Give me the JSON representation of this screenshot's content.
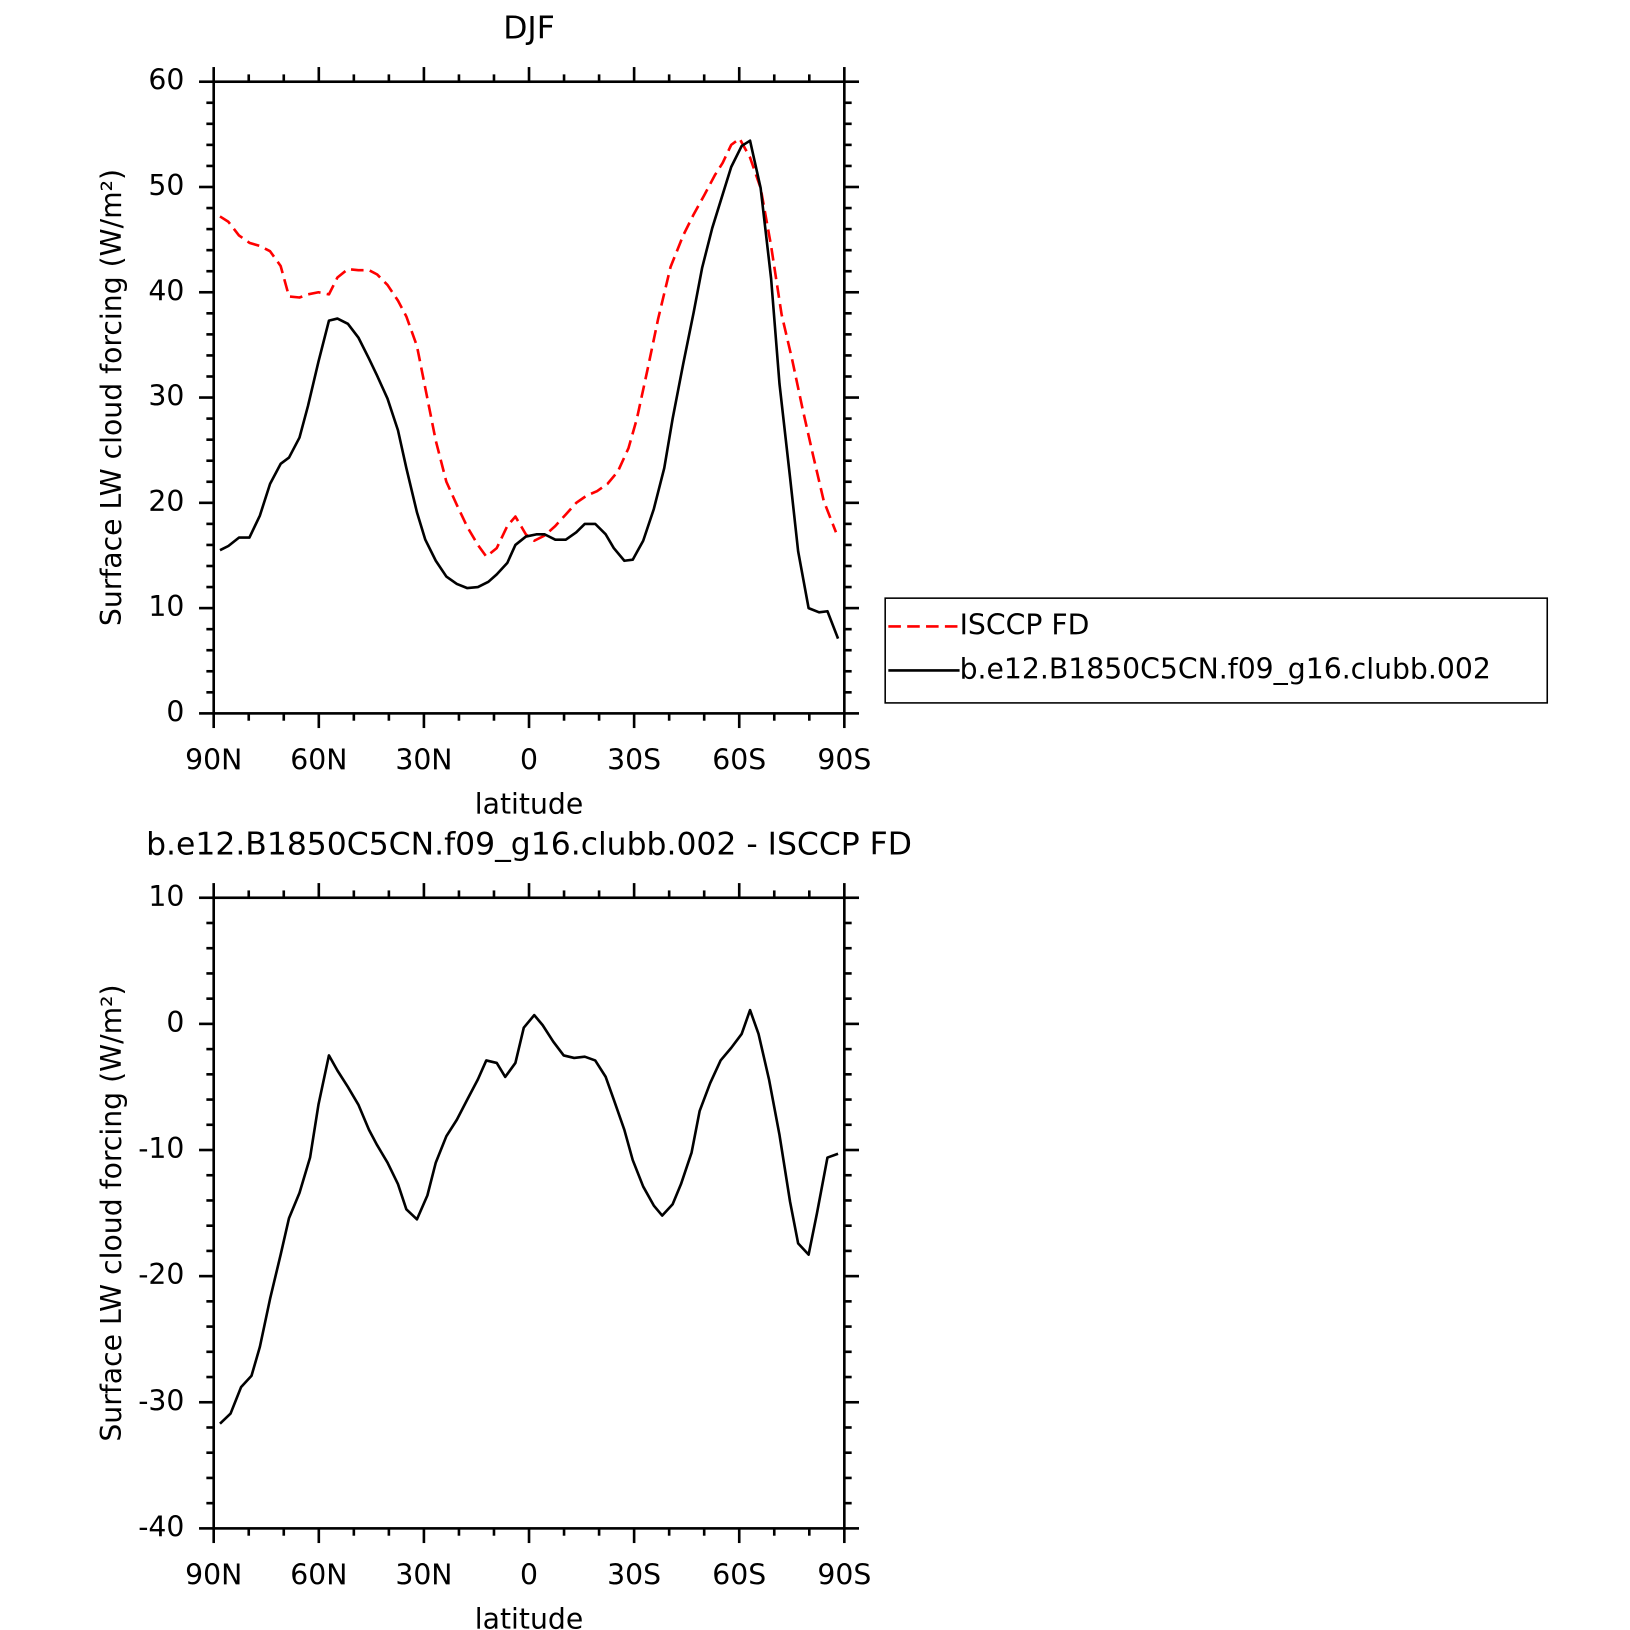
{
  "chart_data": [
    {
      "type": "line",
      "title": "DJF",
      "xlabel": "latitude",
      "ylabel": "Surface LW cloud forcing (W/m²)",
      "xlim": [
        90,
        -90
      ],
      "xticks": [
        {
          "value": 90,
          "label": "90N"
        },
        {
          "value": 60,
          "label": "60N"
        },
        {
          "value": 30,
          "label": "30N"
        },
        0,
        {
          "value": -30,
          "label": "30S"
        },
        {
          "value": -60,
          "label": "60S"
        },
        {
          "value": -90,
          "label": "90S"
        }
      ],
      "ylim": [
        0,
        60
      ],
      "yticks": [
        0,
        10,
        20,
        30,
        40,
        50,
        60
      ],
      "legend": "right",
      "series": [
        {
          "name": "ISCCP FD",
          "color": "#ff0000",
          "line_style": "dashed",
          "x": [
            88.2,
            85.8,
            82.8,
            79.8,
            76.8,
            73.9,
            70.9,
            68.5,
            65.5,
            63.1,
            60.1,
            57.1,
            54.7,
            51.7,
            48.7,
            45.7,
            43.4,
            40.4,
            37.4,
            35.0,
            32.0,
            29.6,
            26.6,
            23.6,
            20.6,
            17.6,
            14.6,
            12.2,
            9.2,
            6.2,
            3.9,
            0.9,
            -1.5,
            -4.5,
            -7.5,
            -10.5,
            -13.5,
            -16.5,
            -19.4,
            -22.4,
            -25.4,
            -28.4,
            -30.8,
            -33.8,
            -36.8,
            -40.4,
            -44.0,
            -47.0,
            -50.0,
            -53.0,
            -55.3,
            -57.7,
            -60.1,
            -63.1,
            -66.1,
            -69.1,
            -72.1,
            -75.1,
            -78.1,
            -81.1,
            -84.1,
            -87.6
          ],
          "values": [
            47.2,
            46.7,
            45.4,
            44.7,
            44.4,
            43.9,
            42.5,
            39.6,
            39.5,
            39.8,
            40.0,
            39.8,
            41.4,
            42.2,
            42.1,
            42.1,
            41.7,
            40.7,
            39.2,
            37.7,
            34.9,
            30.9,
            25.9,
            22.0,
            19.8,
            17.7,
            16.0,
            14.9,
            15.7,
            17.8,
            18.7,
            17.0,
            16.4,
            16.9,
            17.8,
            18.9,
            20.0,
            20.7,
            21.1,
            21.8,
            23.0,
            25.2,
            28.0,
            32.6,
            37.4,
            42.4,
            45.4,
            47.4,
            49.2,
            51.1,
            52.3,
            54.0,
            54.6,
            52.8,
            49.9,
            44.4,
            37.9,
            33.6,
            28.9,
            24.5,
            20.2,
            17.2
          ]
        },
        {
          "name": "b.e12.B1850C5CN.f09_g16.clubb.002",
          "color": "#000000",
          "line_style": "solid",
          "x": [
            88.2,
            85.8,
            82.8,
            79.8,
            76.8,
            73.9,
            70.9,
            68.5,
            65.5,
            63.1,
            60.1,
            57.1,
            54.7,
            51.7,
            48.7,
            45.7,
            43.4,
            40.4,
            37.4,
            35.0,
            32.0,
            29.6,
            26.6,
            23.6,
            20.6,
            17.6,
            14.6,
            11.6,
            9.2,
            6.2,
            3.9,
            0.9,
            -2.1,
            -4.5,
            -7.5,
            -10.5,
            -13.5,
            -15.9,
            -18.9,
            -21.9,
            -24.2,
            -27.2,
            -29.6,
            -32.6,
            -35.6,
            -38.6,
            -41.0,
            -44.0,
            -47.0,
            -49.4,
            -52.3,
            -55.3,
            -57.7,
            -60.7,
            -63.1,
            -66.1,
            -69.1,
            -71.5,
            -74.5,
            -76.8,
            -79.8,
            -82.8,
            -85.2,
            -88.2
          ],
          "values": [
            15.5,
            15.9,
            16.7,
            16.7,
            18.8,
            21.8,
            23.7,
            24.3,
            26.2,
            29.2,
            33.4,
            37.3,
            37.5,
            37.0,
            35.7,
            33.7,
            32.1,
            29.9,
            26.9,
            23.3,
            19.1,
            16.5,
            14.5,
            13.0,
            12.3,
            11.9,
            12.0,
            12.5,
            13.2,
            14.3,
            16.0,
            16.8,
            17.0,
            17.0,
            16.5,
            16.5,
            17.2,
            18.0,
            18.0,
            17.0,
            15.7,
            14.5,
            14.6,
            16.4,
            19.4,
            23.3,
            28.0,
            33.2,
            38.1,
            42.3,
            46.1,
            49.3,
            51.9,
            53.9,
            54.4,
            49.9,
            41.3,
            31.3,
            22.4,
            15.4,
            10.0,
            9.6,
            9.7,
            7.1
          ]
        }
      ]
    },
    {
      "type": "line",
      "title": "b.e12.B1850C5CN.f09_g16.clubb.002 - ISCCP FD",
      "xlabel": "latitude",
      "ylabel": "Surface LW cloud forcing (W/m²)",
      "xlim": [
        90,
        -90
      ],
      "xticks": [
        {
          "value": 90,
          "label": "90N"
        },
        {
          "value": 60,
          "label": "60N"
        },
        {
          "value": 30,
          "label": "30N"
        },
        0,
        {
          "value": -30,
          "label": "30S"
        },
        {
          "value": -60,
          "label": "60S"
        },
        {
          "value": -90,
          "label": "90S"
        }
      ],
      "ylim": [
        -40,
        10
      ],
      "yticks": [
        -40,
        -30,
        -20,
        -10,
        0,
        10
      ],
      "series": [
        {
          "color": "#000000",
          "line_style": "solid",
          "x": [
            88.2,
            85.2,
            82.2,
            79.2,
            76.8,
            73.9,
            70.9,
            68.5,
            65.5,
            62.5,
            60.1,
            57.1,
            54.7,
            51.7,
            48.7,
            45.7,
            43.4,
            40.4,
            37.4,
            35.0,
            32.0,
            29.0,
            26.6,
            23.6,
            20.6,
            17.6,
            14.6,
            12.2,
            9.2,
            6.8,
            3.9,
            1.5,
            -1.5,
            -3.9,
            -6.9,
            -9.9,
            -12.9,
            -15.9,
            -18.9,
            -21.9,
            -24.2,
            -27.2,
            -29.6,
            -32.6,
            -35.6,
            -38.0,
            -41.0,
            -43.4,
            -46.4,
            -48.7,
            -51.7,
            -54.7,
            -57.7,
            -60.7,
            -63.1,
            -65.5,
            -68.5,
            -71.5,
            -74.5,
            -76.8,
            -79.8,
            -82.2,
            -85.2,
            -88.2
          ],
          "values": [
            -31.7,
            -30.9,
            -28.8,
            -27.9,
            -25.6,
            -21.8,
            -18.3,
            -15.4,
            -13.4,
            -10.6,
            -6.4,
            -2.5,
            -3.7,
            -5.0,
            -6.4,
            -8.4,
            -9.6,
            -11.0,
            -12.7,
            -14.7,
            -15.5,
            -13.6,
            -11.0,
            -8.9,
            -7.6,
            -6.0,
            -4.4,
            -2.9,
            -3.1,
            -4.2,
            -3.1,
            -0.3,
            0.7,
            -0.1,
            -1.4,
            -2.5,
            -2.7,
            -2.6,
            -2.9,
            -4.2,
            -6.0,
            -8.4,
            -10.8,
            -12.9,
            -14.4,
            -15.2,
            -14.3,
            -12.7,
            -10.2,
            -6.9,
            -4.7,
            -2.9,
            -1.9,
            -0.8,
            1.1,
            -0.8,
            -4.4,
            -8.8,
            -14.1,
            -17.4,
            -18.3,
            -15.0,
            -10.6,
            -10.3
          ]
        }
      ]
    }
  ]
}
